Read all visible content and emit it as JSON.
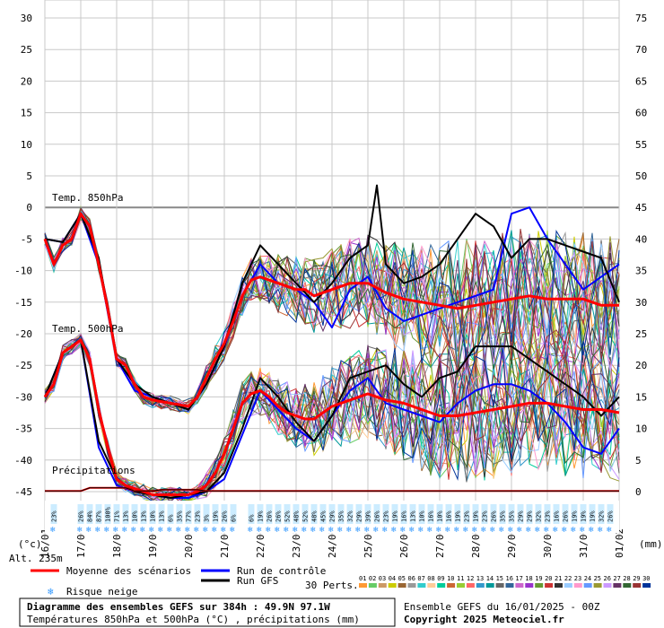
{
  "chart_data": {
    "type": "line",
    "title": "Diagramme des ensembles GEFS sur 384h : 49.9N 97.1W",
    "subtitle": "Températures 850hPa et 500hPa (°C) , précipitations (mm)",
    "left_axis": {
      "unit": "(°c)",
      "range": [
        -45,
        30
      ],
      "ticks": [
        30,
        25,
        20,
        15,
        10,
        5,
        0,
        -5,
        -10,
        -15,
        -20,
        -25,
        -30,
        -35,
        -40,
        -45
      ]
    },
    "right_axis": {
      "unit": "(mm)",
      "range": [
        0,
        75
      ],
      "ticks": [
        75,
        70,
        65,
        60,
        55,
        50,
        45,
        40,
        35,
        30,
        25,
        20,
        15,
        10,
        5,
        0
      ]
    },
    "x_axis": {
      "range_days": [
        16,
        32
      ],
      "labels": [
        "17/01",
        "18/01",
        "19/01",
        "20/01",
        "21/01",
        "22/01",
        "23/01",
        "24/01",
        "25/01",
        "26/01",
        "27/01",
        "28/01",
        "29/01",
        "30/01",
        "31/01",
        "01/02"
      ]
    },
    "grid": true,
    "section_labels": {
      "t850": "Temp. 850hPa",
      "t500": "Temp. 500hPa",
      "precip": "Précipitations"
    },
    "altitude": "Alt. 235m",
    "series": [
      {
        "name": "Moyenne des scénarios",
        "color": "#ff0000",
        "role": "mean_850",
        "x": [
          16,
          16.25,
          16.5,
          16.75,
          17,
          17.25,
          17.5,
          17.75,
          18,
          18.25,
          18.5,
          18.75,
          19,
          19.5,
          20,
          20.25,
          20.5,
          20.75,
          21,
          21.25,
          21.5,
          21.75,
          22,
          22.25,
          22.5,
          22.75,
          23,
          23.25,
          23.5,
          24,
          24.5,
          25,
          25.5,
          26,
          26.5,
          27,
          27.5,
          28,
          28.5,
          29,
          29.5,
          30,
          30.5,
          31,
          31.5,
          32
        ],
        "y": [
          -5,
          -9,
          -6,
          -5,
          -1,
          -3,
          -9,
          -16,
          -24,
          -25,
          -28,
          -30,
          -30.5,
          -31,
          -31.5,
          -30,
          -27,
          -24,
          -21.5,
          -18,
          -14,
          -11.5,
          -11,
          -11.5,
          -12,
          -12.5,
          -13,
          -13,
          -14,
          -13,
          -12,
          -12,
          -13.5,
          -14.5,
          -15,
          -15.5,
          -16,
          -15.5,
          -15,
          -14.5,
          -14,
          -14.5,
          -14.5,
          -14.5,
          -15.5,
          -15.5
        ]
      },
      {
        "name": "Moyenne des scénarios",
        "color": "#ff0000",
        "role": "mean_500",
        "x": [
          16,
          16.25,
          16.5,
          16.75,
          17,
          17.25,
          17.5,
          17.75,
          18,
          18.25,
          18.5,
          18.75,
          19,
          19.5,
          20,
          20.25,
          20.5,
          20.75,
          21,
          21.25,
          21.5,
          21.75,
          22,
          22.25,
          22.5,
          22.75,
          23,
          23.25,
          23.5,
          24,
          24.5,
          25,
          25.5,
          26,
          26.5,
          27,
          27.5,
          28,
          28.5,
          29,
          29.5,
          30,
          30.5,
          31,
          31.5,
          32
        ],
        "y": [
          -30,
          -28,
          -23,
          -22,
          -21,
          -24,
          -32,
          -38,
          -43,
          -44,
          -44.5,
          -45,
          -45.5,
          -45.5,
          -45.5,
          -45,
          -44,
          -42,
          -39,
          -35,
          -31,
          -29.5,
          -29,
          -30,
          -31.5,
          -32.5,
          -33,
          -33.5,
          -33.5,
          -31.5,
          -30.5,
          -29.5,
          -30.5,
          -31,
          -32,
          -33,
          -33,
          -32.5,
          -32,
          -31.5,
          -31,
          -31,
          -31.5,
          -32,
          -32,
          -32.5
        ]
      },
      {
        "name": "Run de contrôle",
        "color": "#0000ff",
        "role": "control_850",
        "x": [
          16,
          16.5,
          17,
          17.5,
          18,
          18.5,
          19,
          19.5,
          20,
          20.5,
          21,
          21.5,
          22,
          22.5,
          23,
          23.5,
          24,
          24.5,
          25,
          25.5,
          26,
          26.5,
          27,
          27.5,
          28,
          28.5,
          29,
          29.5,
          30,
          30.5,
          31,
          31.5,
          32
        ],
        "y": [
          -5,
          -5.5,
          -1,
          -9,
          -24,
          -29,
          -30,
          -31,
          -32,
          -28,
          -22,
          -14,
          -9,
          -12,
          -13,
          -15,
          -19,
          -13,
          -11,
          -16,
          -18,
          -17,
          -16,
          -15,
          -14,
          -13,
          -1,
          0,
          -5,
          -9,
          -13,
          -11,
          -9
        ]
      },
      {
        "name": "Run GFS",
        "color": "#000000",
        "role": "gfs_850",
        "x": [
          16,
          16.5,
          17,
          17.5,
          18,
          18.5,
          19,
          19.5,
          20,
          20.5,
          21,
          21.5,
          22,
          22.5,
          23,
          23.5,
          24,
          24.5,
          25,
          25.25,
          25.5,
          26,
          26.5,
          27,
          27.5,
          28,
          28.5,
          29,
          29.5,
          30,
          30.5,
          31,
          31.5,
          32
        ],
        "y": [
          -5,
          -5.5,
          -1,
          -8,
          -24,
          -28,
          -30,
          -31,
          -32,
          -28,
          -22,
          -12,
          -6,
          -9,
          -12,
          -15,
          -12,
          -8,
          -6,
          3.5,
          -9,
          -12,
          -11,
          -9,
          -5,
          -1,
          -3,
          -8,
          -5,
          -5,
          -6,
          -7,
          -8,
          -15
        ]
      },
      {
        "name": "Run de contrôle",
        "color": "#0000ff",
        "role": "control_500",
        "x": [
          16,
          16.5,
          17,
          17.5,
          18,
          18.5,
          19,
          19.5,
          20,
          20.5,
          21,
          21.5,
          22,
          22.5,
          23,
          23.5,
          24,
          24.5,
          25,
          25.5,
          26,
          26.5,
          27,
          27.5,
          28,
          28.5,
          29,
          29.5,
          30,
          30.5,
          31,
          31.5,
          32
        ],
        "y": [
          -30,
          -23,
          -21,
          -38,
          -44,
          -45,
          -45.5,
          -46,
          -46,
          -45,
          -43,
          -36,
          -29,
          -32,
          -35,
          -37,
          -33,
          -29,
          -27,
          -31,
          -32,
          -33,
          -34,
          -31,
          -29,
          -28,
          -28,
          -29,
          -31,
          -34,
          -38,
          -39,
          -35
        ]
      },
      {
        "name": "Run GFS",
        "color": "#000000",
        "role": "gfs_500",
        "x": [
          16,
          16.5,
          17,
          17.5,
          18,
          18.5,
          19,
          19.5,
          20,
          20.5,
          21,
          21.5,
          22,
          22.5,
          23,
          23.5,
          24,
          24.5,
          25,
          25.5,
          26,
          26.5,
          27,
          27.5,
          28,
          28.5,
          29,
          29.5,
          30,
          30.5,
          31,
          31.5,
          32
        ],
        "y": [
          -30,
          -23,
          -21,
          -37,
          -43,
          -45,
          -45.5,
          -46,
          -45.5,
          -45,
          -42,
          -35,
          -27,
          -30,
          -34,
          -37,
          -33,
          -27,
          -26,
          -25,
          -28,
          -30,
          -27,
          -26,
          -22,
          -22,
          -22,
          -24,
          -26,
          -28,
          -30,
          -33,
          -30
        ]
      }
    ],
    "snow_risk": {
      "label": "Risque neige",
      "days": [
        16.25,
        17.0,
        17.25,
        17.5,
        17.75,
        18.0,
        18.25,
        18.5,
        18.75,
        19.0,
        19.25,
        19.5,
        19.75,
        20.0,
        20.25,
        20.5,
        20.75,
        21.0,
        21.25,
        21.75,
        22.0,
        22.25,
        22.5,
        22.75,
        23.0,
        23.25,
        23.5,
        23.75,
        24.0,
        24.25,
        24.5,
        24.75,
        25.0,
        25.25,
        25.5,
        25.75,
        26.0,
        26.25,
        26.5,
        26.75,
        27.0,
        27.25,
        27.5,
        27.75,
        28.0,
        28.25,
        28.5,
        28.75,
        29.0,
        29.25,
        29.5,
        29.75,
        30.0,
        30.25,
        30.5,
        30.75,
        31.0,
        31.25,
        31.5,
        31.75
      ],
      "percent": [
        "23%",
        "26%",
        "84%",
        "87%",
        "100%",
        "71%",
        "13%",
        "10%",
        "13%",
        "10%",
        "13%",
        "6%",
        "35%",
        "77%",
        "23%",
        "3%",
        "19%",
        "26%",
        "6%",
        "6%",
        "19%",
        "26%",
        "26%",
        "52%",
        "48%",
        "52%",
        "48%",
        "45%",
        "29%",
        "35%",
        "32%",
        "29%",
        "39%",
        "26%",
        "23%",
        "19%",
        "16%",
        "13%",
        "10%",
        "16%",
        "10%",
        "16%",
        "19%",
        "23%",
        "19%",
        "23%",
        "26%",
        "35%",
        "35%",
        "29%",
        "29%",
        "32%",
        "23%",
        "16%",
        "26%",
        "19%",
        "19%",
        "19%",
        "32%",
        "26%"
      ]
    },
    "legend": {
      "mean": "Moyenne des scénarios",
      "control": "Run de contrôle",
      "gfs": "Run GFS",
      "snow": "Risque neige",
      "perts_label": "30 Perts.",
      "perts_numbers": [
        "01",
        "02",
        "03",
        "04",
        "05",
        "06",
        "07",
        "08",
        "09",
        "10",
        "11",
        "12",
        "13",
        "14",
        "15",
        "16",
        "17",
        "18",
        "19",
        "20",
        "21",
        "22",
        "23",
        "24",
        "25",
        "26",
        "27",
        "28",
        "29",
        "30"
      ],
      "perts_colors": [
        "#ff9933",
        "#66cc66",
        "#cc9966",
        "#cccc00",
        "#996633",
        "#999999",
        "#33cccc",
        "#ffcc99",
        "#00cc99",
        "#cc6633",
        "#99cc33",
        "#ff6666",
        "#3399cc",
        "#009999",
        "#666666",
        "#336699",
        "#cc66cc",
        "#9933cc",
        "#669933",
        "#cc3333",
        "#333333",
        "#99ccff",
        "#ff99cc",
        "#6699ff",
        "#999933",
        "#cc99ff",
        "#663366",
        "#336633",
        "#993333",
        "#003399"
      ]
    },
    "footer": {
      "run": "Ensemble GEFS du 16/01/2025 - 00Z",
      "copyright": "Copyright 2025 Meteociel.fr"
    }
  }
}
